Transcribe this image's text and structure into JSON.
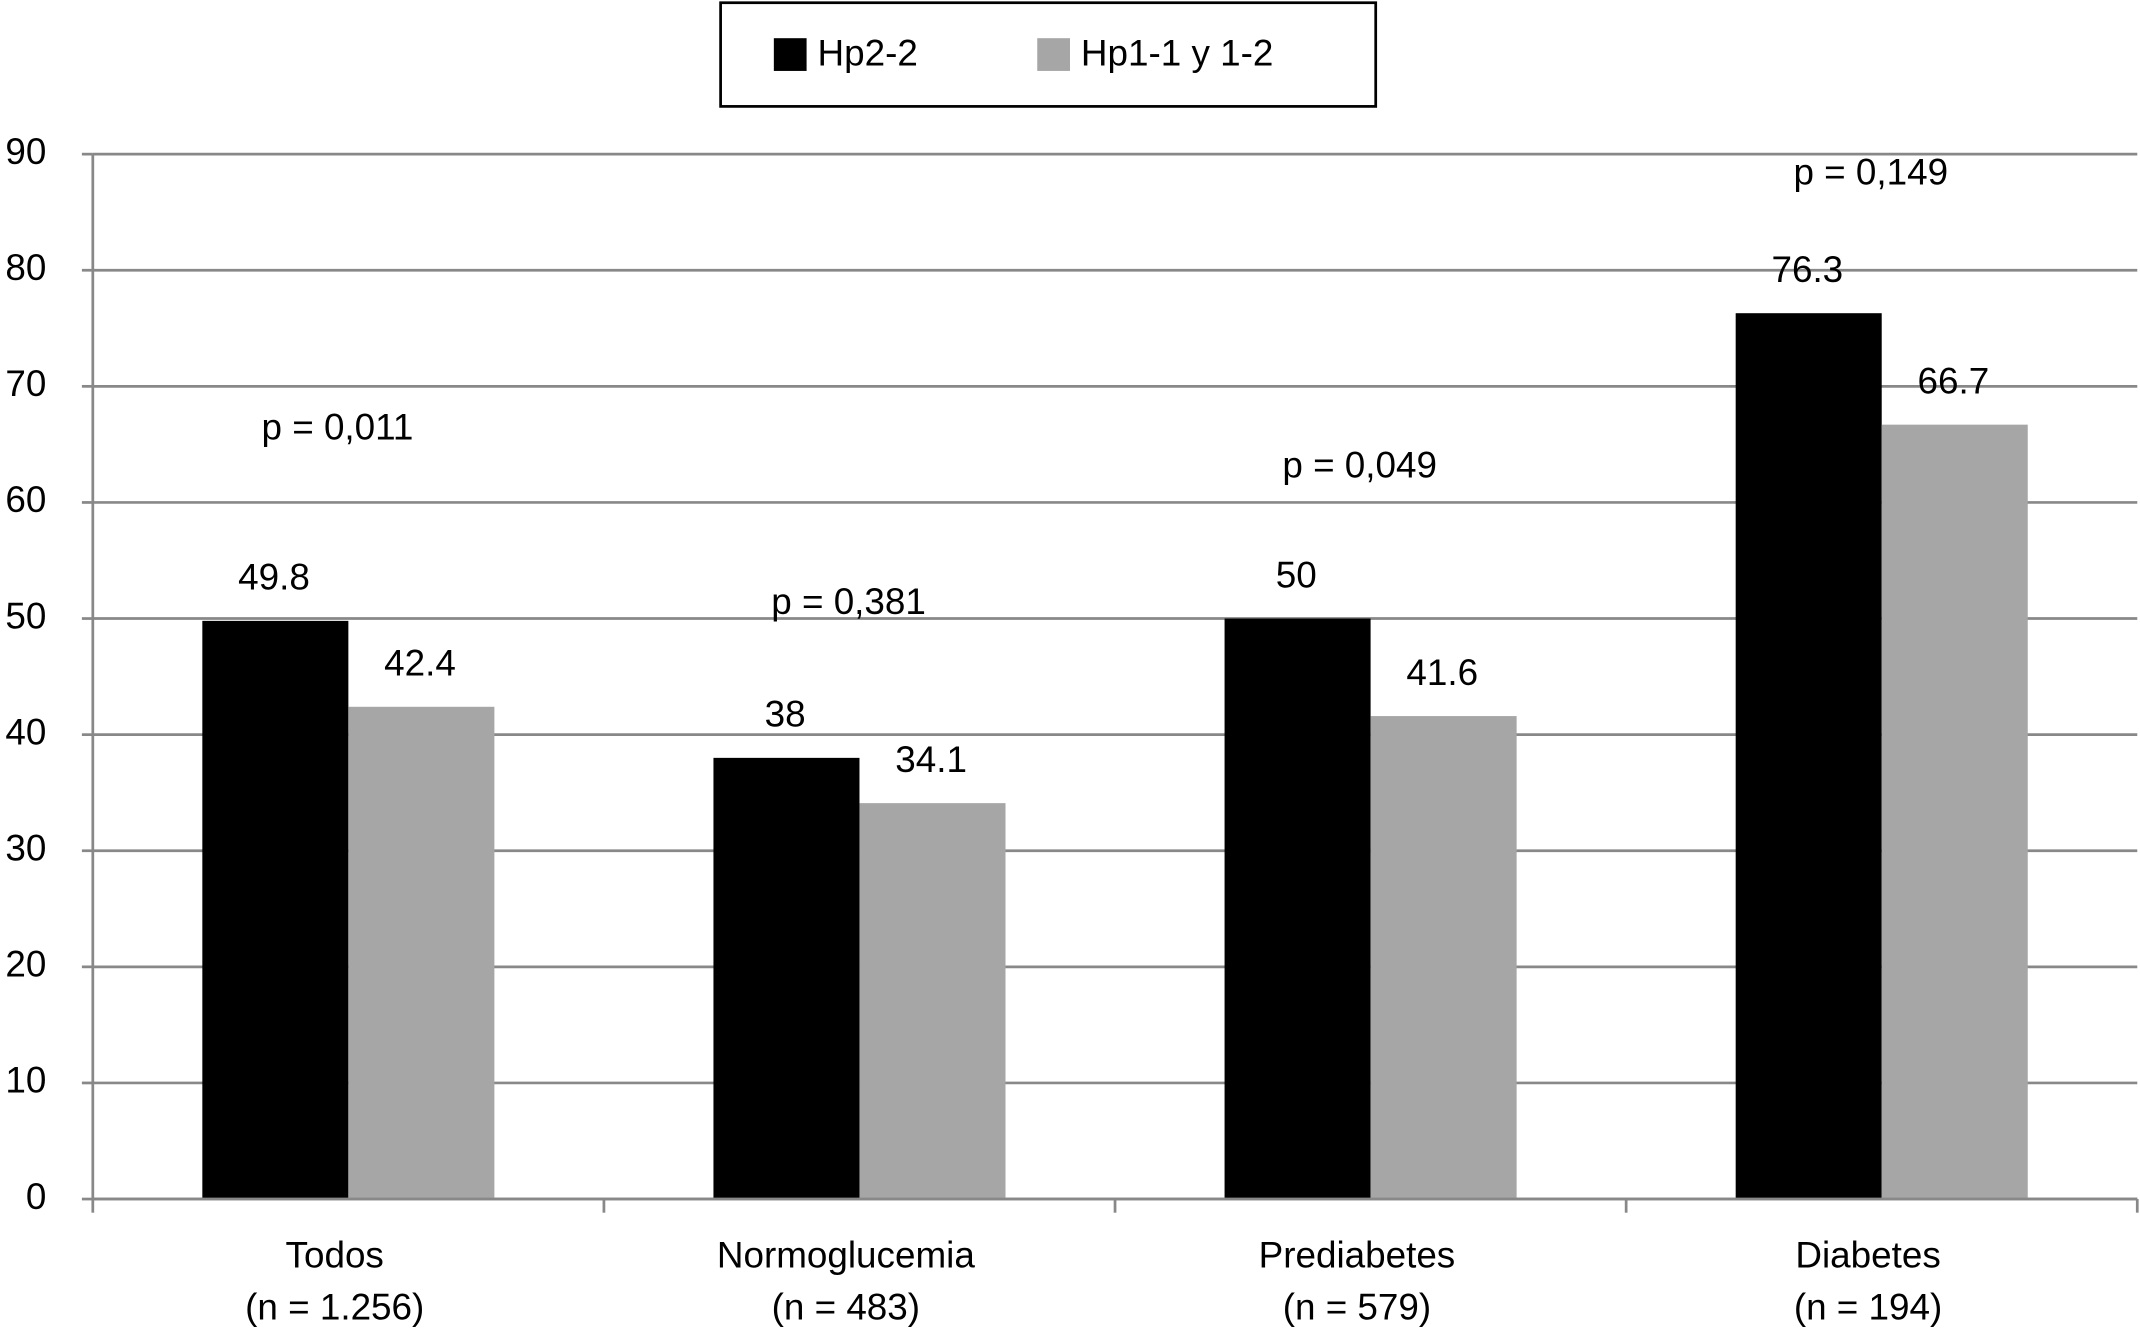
{
  "chart_data": {
    "type": "bar",
    "categories": [
      "Todos",
      "Normoglucemia",
      "Prediabetes",
      "Diabetes"
    ],
    "category_sublabels": [
      "(n = 1.256)",
      "(n = 483)",
      "(n = 579)",
      "(n = 194)"
    ],
    "series": [
      {
        "name": "Hp2-2",
        "color": "#000000",
        "values": [
          49.8,
          38,
          50,
          76.3
        ]
      },
      {
        "name": "Hp1-1 y 1-2",
        "color": "#a6a6a6",
        "values": [
          42.4,
          34.1,
          41.6,
          66.7
        ]
      }
    ],
    "annotations": [
      "p = 0,011",
      "p = 0,381",
      "p = 0,049",
      "p = 0,149"
    ],
    "ylim": [
      0,
      90
    ],
    "yticks": [
      0,
      10,
      20,
      30,
      40,
      50,
      60,
      70,
      80,
      90
    ],
    "grid": true,
    "legend": "top"
  }
}
